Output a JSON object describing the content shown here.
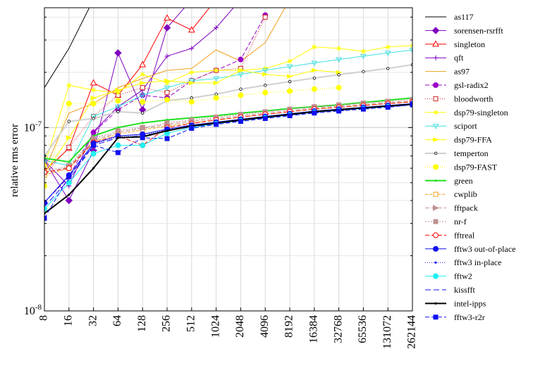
{
  "chart_data": {
    "type": "line",
    "title": "",
    "xlabel": "",
    "ylabel": "relative rms error",
    "x_scale": "log2",
    "y_scale": "log",
    "ylim": [
      1e-08,
      4.5e-07
    ],
    "y_tick_labels": [
      {
        "value": 1e-08,
        "base": "10",
        "exp": "-8"
      },
      {
        "value": 1e-07,
        "base": "10",
        "exp": "-7"
      }
    ],
    "grid": true,
    "legend": "right",
    "categories": [
      "8",
      "16",
      "32",
      "64",
      "128",
      "256",
      "512",
      "1024",
      "2048",
      "4096",
      "8192",
      "16384",
      "32768",
      "65536",
      "131072",
      "262144"
    ],
    "series": [
      {
        "name": "as117",
        "color": "#000000",
        "dash": "",
        "width": 1,
        "marker": "none",
        "values": [
          1.65e-07,
          2.7e-07,
          5e-07,
          null,
          null,
          null,
          null,
          null,
          null,
          null,
          null,
          null,
          null,
          null,
          null,
          null
        ]
      },
      {
        "name": "sorensen-rsrfft",
        "color": "#8000c0",
        "dash": "",
        "width": 1,
        "marker": "diamond",
        "values": [
          6.6e-08,
          4e-08,
          7.5e-08,
          2.55e-07,
          1.25e-07,
          3.5e-07,
          5e-07,
          null,
          null,
          null,
          null,
          null,
          null,
          null,
          null,
          null
        ]
      },
      {
        "name": "singleton",
        "color": "#ff0000",
        "dash": "",
        "width": 1,
        "marker": "triangle-open",
        "values": [
          5.8e-08,
          7.7e-08,
          1.75e-07,
          1.5e-07,
          2.2e-07,
          3.95e-07,
          3.4e-07,
          5e-07,
          null,
          null,
          null,
          null,
          null,
          null,
          null,
          null
        ]
      },
      {
        "name": "qft",
        "color": "#8000c0",
        "dash": "",
        "width": 1,
        "marker": "plus",
        "values": [
          6.6e-08,
          4.8e-08,
          9.5e-08,
          1.3e-07,
          1.6e-07,
          2.45e-07,
          2.7e-07,
          3.5e-07,
          5e-07,
          null,
          null,
          null,
          null,
          null,
          null,
          null
        ]
      },
      {
        "name": "as97",
        "color": "#f0a020",
        "dash": "",
        "width": 1,
        "marker": "none",
        "values": [
          5.8e-08,
          1.2e-07,
          1.35e-07,
          1.65e-07,
          1.85e-07,
          2.05e-07,
          2.1e-07,
          2.65e-07,
          2.3e-07,
          2.9e-07,
          5e-07,
          null,
          null,
          null,
          null,
          null
        ]
      },
      {
        "name": "gsl-radix2",
        "color": "#9a00c8",
        "dash": "6,3",
        "width": 1,
        "marker": "circle-filled",
        "values": [
          3.9e-08,
          5.4e-08,
          9.4e-08,
          1.25e-07,
          1.5e-07,
          1.45e-07,
          1.8e-07,
          2.05e-07,
          2.35e-07,
          4.1e-07,
          null,
          null,
          null,
          null,
          null,
          null
        ]
      },
      {
        "name": "bloodworth",
        "color": "#d02020",
        "dash": "1,2",
        "width": 1,
        "marker": "square-open",
        "values": [
          5.5e-08,
          7.8e-08,
          1.15e-07,
          1.5e-07,
          1.65e-07,
          1.55e-07,
          1.8e-07,
          2.05e-07,
          2.1e-07,
          4e-07,
          null,
          null,
          null,
          null,
          null,
          null
        ]
      },
      {
        "name": "dsp79-singleton",
        "color": "#ffff00",
        "dash": "",
        "width": 1,
        "marker": "asterisk",
        "values": [
          6.2e-08,
          1.7e-07,
          1.6e-07,
          1.55e-07,
          1.95e-07,
          1.75e-07,
          2e-07,
          2.05e-07,
          2.05e-07,
          2.1e-07,
          2.3e-07,
          2.75e-07,
          2.7e-07,
          2.6e-07,
          2.75e-07,
          2.8e-07
        ]
      },
      {
        "name": "sciport",
        "color": "#40e0e0",
        "dash": "",
        "width": 1,
        "marker": "triangle-down-open",
        "values": [
          6.6e-08,
          6.2e-08,
          1.15e-07,
          1.3e-07,
          1.5e-07,
          1.65e-07,
          1.8e-07,
          1.85e-07,
          1.95e-07,
          2.05e-07,
          2.15e-07,
          2.25e-07,
          2.35e-07,
          2.45e-07,
          2.55e-07,
          2.65e-07
        ]
      },
      {
        "name": "dsp79-FFA",
        "color": "#ffff00",
        "dash": "",
        "width": 1,
        "marker": "arrow-right",
        "values": [
          5.6e-08,
          8.8e-08,
          1.45e-07,
          1.6e-07,
          1.75e-07,
          1.8e-07,
          1.75e-07,
          1.75e-07,
          2.05e-07,
          1.95e-07,
          1.9e-07,
          2.05e-07,
          2e-07,
          null,
          null,
          null
        ]
      },
      {
        "name": "temperton",
        "color": "#d0d0d0",
        "dash": "",
        "width": 2,
        "marker": "circle-open-small",
        "values": [
          7e-08,
          1.08e-07,
          1.12e-07,
          1.22e-07,
          1.2e-07,
          1.4e-07,
          1.45e-07,
          1.52e-07,
          1.62e-07,
          1.7e-07,
          1.78e-07,
          1.86e-07,
          1.94e-07,
          2.02e-07,
          2.1e-07,
          2.2e-07
        ]
      },
      {
        "name": "dsp79-FAST",
        "color": "#ffff00",
        "dash": "1,2",
        "width": 1,
        "marker": "circle-filled",
        "values": [
          4.8e-08,
          1.35e-07,
          1.35e-07,
          1.4e-07,
          1.38e-07,
          1.42e-07,
          1.38e-07,
          1.45e-07,
          1.5e-07,
          1.55e-07,
          1.58e-07,
          1.62e-07,
          1.65e-07,
          null,
          null,
          null
        ]
      },
      {
        "name": "green",
        "color": "#20e020",
        "dash": "",
        "width": 2,
        "marker": "dot",
        "values": [
          6.8e-08,
          6.5e-08,
          9e-08,
          1e-07,
          1.06e-07,
          1.1e-07,
          1.13e-07,
          1.16e-07,
          1.2e-07,
          1.23e-07,
          1.27e-07,
          1.3e-07,
          1.33e-07,
          1.37e-07,
          1.41e-07,
          1.45e-07
        ]
      },
      {
        "name": "cwplib",
        "color": "#f0a020",
        "dash": "4,2",
        "width": 1,
        "marker": "square-open",
        "values": [
          5.5e-08,
          6e-08,
          8.4e-08,
          9.2e-08,
          9.7e-08,
          1.02e-07,
          1.06e-07,
          1.1e-07,
          1.14e-07,
          1.18e-07,
          1.22e-07,
          1.26e-07,
          1.29e-07,
          1.32e-07,
          1.35e-07,
          1.38e-07
        ]
      },
      {
        "name": "fftpack",
        "color": "#c09090",
        "dash": "6,3",
        "width": 1,
        "marker": "triangle-right",
        "values": [
          5.6e-08,
          6.1e-08,
          8.5e-08,
          9.4e-08,
          9.9e-08,
          1.04e-07,
          1.08e-07,
          1.12e-07,
          1.16e-07,
          1.2e-07,
          1.24e-07,
          1.28e-07,
          1.31e-07,
          1.34e-07,
          1.37e-07,
          1.4e-07
        ]
      },
      {
        "name": "nr-f",
        "color": "#c09090",
        "dash": "2,2",
        "width": 1,
        "marker": "square-filled",
        "values": [
          5.7e-08,
          6.2e-08,
          8.7e-08,
          9.6e-08,
          1e-07,
          1.06e-07,
          1.1e-07,
          1.14e-07,
          1.18e-07,
          1.22e-07,
          1.26e-07,
          1.3e-07,
          1.33e-07,
          1.36e-07,
          1.39e-07,
          1.42e-07
        ]
      },
      {
        "name": "fftreal",
        "color": "#ff0000",
        "dash": "6,3",
        "width": 1,
        "marker": "circle-open",
        "values": [
          5.7e-08,
          6e-08,
          8.3e-08,
          9e-08,
          8e-08,
          1e-07,
          1.05e-07,
          1.1e-07,
          1.14e-07,
          1.18e-07,
          1.22e-07,
          1.26e-07,
          1.29e-07,
          1.32e-07,
          1.35e-07,
          1.38e-07
        ]
      },
      {
        "name": "fftw3 out-of-place",
        "color": "#1010f0",
        "dash": "",
        "width": 1,
        "marker": "circle-filled",
        "values": [
          3.9e-08,
          5.5e-08,
          8.2e-08,
          9e-08,
          9.2e-08,
          9.8e-08,
          1.03e-07,
          1.07e-07,
          1.11e-07,
          1.15e-07,
          1.19e-07,
          1.23e-07,
          1.26e-07,
          1.29e-07,
          1.32e-07,
          1.35e-07
        ]
      },
      {
        "name": "fftw3 in-place",
        "color": "#1010f0",
        "dash": "1,2",
        "width": 1,
        "marker": "dot",
        "values": [
          3.9e-08,
          5.4e-08,
          8.1e-08,
          8.9e-08,
          9.1e-08,
          9.7e-08,
          1.02e-07,
          1.06e-07,
          1.1e-07,
          1.14e-07,
          1.18e-07,
          1.22e-07,
          1.25e-07,
          1.28e-07,
          1.31e-07,
          1.34e-07
        ]
      },
      {
        "name": "fftw2",
        "color": "#20f0f0",
        "dash": "",
        "width": 1,
        "marker": "circle-filled",
        "values": [
          3.6e-08,
          5e-08,
          7.2e-08,
          8e-08,
          8e-08,
          9.3e-08,
          1e-07,
          1.05e-07,
          1.09e-07,
          1.13e-07,
          1.17e-07,
          1.21e-07,
          1.24e-07,
          1.27e-07,
          1.3e-07,
          1.33e-07
        ]
      },
      {
        "name": "kissfft",
        "color": "#1010f0",
        "dash": "8,4",
        "width": 1,
        "marker": "none",
        "values": [
          3.7e-08,
          5.2e-08,
          8e-08,
          8.8e-08,
          9e-08,
          9.6e-08,
          1.01e-07,
          1.05e-07,
          1.09e-07,
          1.13e-07,
          1.17e-07,
          1.21e-07,
          1.24e-07,
          1.27e-07,
          1.3e-07,
          1.33e-07
        ]
      },
      {
        "name": "intel-ipps",
        "color": "#000000",
        "dash": "",
        "width": 2,
        "marker": "dot",
        "values": [
          3.4e-08,
          4.3e-08,
          6e-08,
          8.8e-08,
          8.9e-08,
          9.6e-08,
          1.02e-07,
          1.06e-07,
          1.1e-07,
          1.14e-07,
          1.18e-07,
          1.22e-07,
          1.25e-07,
          1.28e-07,
          1.31e-07,
          1.34e-07
        ]
      },
      {
        "name": "fftw3-r2r",
        "color": "#1010f0",
        "dash": "6,3",
        "width": 1,
        "marker": "square-filled",
        "values": [
          3.2e-08,
          5.4e-08,
          8e-08,
          7.3e-08,
          8.8e-08,
          8.7e-08,
          9.9e-08,
          1.04e-07,
          1.08e-07,
          1.12e-07,
          1.16e-07,
          1.2e-07,
          1.23e-07,
          1.26e-07,
          1.29e-07,
          1.33e-07
        ]
      }
    ]
  }
}
